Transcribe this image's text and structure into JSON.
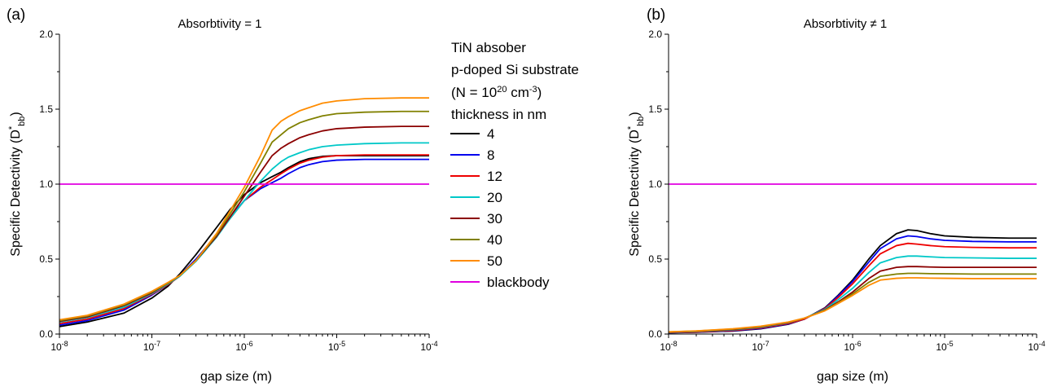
{
  "legend": {
    "header": [
      {
        "text": "TiN absober"
      },
      {
        "text": "p-doped Si substrate"
      },
      {
        "pre": "(N = 10",
        "sup": "20",
        "mid": " cm",
        "sup2": "-3",
        "post": ")"
      },
      {
        "text": "thickness in nm"
      }
    ]
  },
  "chart_data": [
    {
      "type": "line",
      "panel_label": "(a)",
      "title": "Absorbtivity = 1",
      "xlabel": "gap size (m)",
      "ylabel": {
        "main": "Specific Detectivity (D",
        "sup": "*",
        "sub": "bb",
        "end": ")"
      },
      "x_scale": "log",
      "xlim": [
        1e-08,
        0.0001
      ],
      "ylim": [
        0.0,
        2.0
      ],
      "x_ticks": [
        {
          "base": "10",
          "exp": "-8"
        },
        {
          "base": "10",
          "exp": "-7"
        },
        {
          "base": "10",
          "exp": "-6"
        },
        {
          "base": "10",
          "exp": "-5"
        },
        {
          "base": "10",
          "exp": "-4"
        }
      ],
      "y_ticks": [
        "0.0",
        "0.5",
        "1.0",
        "1.5",
        "2.0"
      ],
      "x": [
        1e-08,
        2e-08,
        5e-08,
        1e-07,
        1.5e-07,
        2e-07,
        3e-07,
        5e-07,
        7e-07,
        1e-06,
        1.5e-06,
        2e-06,
        2.5e-06,
        3e-06,
        4e-06,
        5e-06,
        7e-06,
        1e-05,
        2e-05,
        5e-05,
        0.0001
      ],
      "series": [
        {
          "name": "4",
          "color": "#000000",
          "values": [
            0.05,
            0.08,
            0.14,
            0.24,
            0.32,
            0.4,
            0.53,
            0.71,
            0.83,
            0.93,
            1.01,
            1.05,
            1.08,
            1.11,
            1.15,
            1.17,
            1.185,
            1.19,
            1.19,
            1.19,
            1.19
          ]
        },
        {
          "name": "8",
          "color": "#0000ee",
          "values": [
            0.06,
            0.09,
            0.16,
            0.26,
            0.33,
            0.39,
            0.5,
            0.66,
            0.78,
            0.89,
            0.97,
            1.01,
            1.04,
            1.07,
            1.11,
            1.13,
            1.15,
            1.16,
            1.165,
            1.165,
            1.165
          ]
        },
        {
          "name": "12",
          "color": "#ee0000",
          "values": [
            0.07,
            0.1,
            0.17,
            0.265,
            0.33,
            0.385,
            0.49,
            0.65,
            0.77,
            0.89,
            0.98,
            1.03,
            1.07,
            1.1,
            1.14,
            1.16,
            1.18,
            1.19,
            1.195,
            1.195,
            1.195
          ]
        },
        {
          "name": "20",
          "color": "#00c8c8",
          "values": [
            0.08,
            0.11,
            0.18,
            0.27,
            0.335,
            0.385,
            0.485,
            0.645,
            0.77,
            0.89,
            1.02,
            1.1,
            1.15,
            1.18,
            1.21,
            1.23,
            1.25,
            1.26,
            1.27,
            1.275,
            1.275
          ]
        },
        {
          "name": "30",
          "color": "#8b0000",
          "values": [
            0.085,
            0.115,
            0.19,
            0.275,
            0.34,
            0.39,
            0.49,
            0.65,
            0.78,
            0.92,
            1.08,
            1.19,
            1.24,
            1.27,
            1.31,
            1.33,
            1.355,
            1.37,
            1.38,
            1.385,
            1.385
          ]
        },
        {
          "name": "40",
          "color": "#808000",
          "values": [
            0.09,
            0.12,
            0.195,
            0.28,
            0.34,
            0.39,
            0.49,
            0.66,
            0.8,
            0.95,
            1.14,
            1.28,
            1.33,
            1.37,
            1.41,
            1.43,
            1.455,
            1.47,
            1.48,
            1.485,
            1.485
          ]
        },
        {
          "name": "50",
          "color": "#ff8c00",
          "values": [
            0.095,
            0.125,
            0.2,
            0.285,
            0.345,
            0.39,
            0.49,
            0.67,
            0.82,
            0.98,
            1.19,
            1.36,
            1.42,
            1.45,
            1.49,
            1.51,
            1.54,
            1.555,
            1.57,
            1.575,
            1.575
          ]
        },
        {
          "name": "blackbody",
          "color": "#e000e0",
          "values": [
            1.0,
            1.0,
            1.0,
            1.0,
            1.0,
            1.0,
            1.0,
            1.0,
            1.0,
            1.0,
            1.0,
            1.0,
            1.0,
            1.0,
            1.0,
            1.0,
            1.0,
            1.0,
            1.0,
            1.0,
            1.0
          ]
        }
      ]
    },
    {
      "type": "line",
      "panel_label": "(b)",
      "title": "Absorbtivity ≠ 1",
      "xlabel": "gap size (m)",
      "ylabel": {
        "main": "Specific Detectivity (D",
        "sup": "*",
        "sub": "bb",
        "end": ")"
      },
      "x_scale": "log",
      "xlim": [
        1e-08,
        0.0001
      ],
      "ylim": [
        0.0,
        2.0
      ],
      "x_ticks": [
        {
          "base": "10",
          "exp": "-8"
        },
        {
          "base": "10",
          "exp": "-7"
        },
        {
          "base": "10",
          "exp": "-6"
        },
        {
          "base": "10",
          "exp": "-5"
        },
        {
          "base": "10",
          "exp": "-4"
        }
      ],
      "y_ticks": [
        "0.0",
        "0.5",
        "1.0",
        "1.5",
        "2.0"
      ],
      "x": [
        1e-08,
        2e-08,
        5e-08,
        1e-07,
        2e-07,
        3e-07,
        5e-07,
        7e-07,
        1e-06,
        1.5e-06,
        2e-06,
        3e-06,
        4e-06,
        5e-06,
        7e-06,
        1e-05,
        2e-05,
        5e-05,
        0.0001
      ],
      "series": [
        {
          "name": "4",
          "color": "#000000",
          "values": [
            0.008,
            0.012,
            0.02,
            0.035,
            0.065,
            0.1,
            0.175,
            0.26,
            0.36,
            0.5,
            0.59,
            0.67,
            0.695,
            0.69,
            0.67,
            0.655,
            0.645,
            0.64,
            0.64
          ]
        },
        {
          "name": "8",
          "color": "#0000ee",
          "values": [
            0.009,
            0.013,
            0.022,
            0.037,
            0.067,
            0.1,
            0.172,
            0.255,
            0.35,
            0.48,
            0.57,
            0.635,
            0.655,
            0.65,
            0.635,
            0.625,
            0.618,
            0.615,
            0.615
          ]
        },
        {
          "name": "12",
          "color": "#ee0000",
          "values": [
            0.01,
            0.014,
            0.024,
            0.04,
            0.07,
            0.1,
            0.17,
            0.245,
            0.335,
            0.455,
            0.535,
            0.59,
            0.605,
            0.6,
            0.59,
            0.583,
            0.578,
            0.575,
            0.575
          ]
        },
        {
          "name": "20",
          "color": "#00c8c8",
          "values": [
            0.012,
            0.017,
            0.028,
            0.045,
            0.075,
            0.105,
            0.165,
            0.23,
            0.305,
            0.41,
            0.475,
            0.51,
            0.52,
            0.52,
            0.515,
            0.51,
            0.508,
            0.505,
            0.505
          ]
        },
        {
          "name": "30",
          "color": "#8b0000",
          "values": [
            0.013,
            0.019,
            0.031,
            0.048,
            0.077,
            0.105,
            0.16,
            0.215,
            0.28,
            0.37,
            0.42,
            0.445,
            0.45,
            0.45,
            0.447,
            0.445,
            0.445,
            0.445,
            0.445
          ]
        },
        {
          "name": "40",
          "color": "#808000",
          "values": [
            0.014,
            0.02,
            0.033,
            0.05,
            0.079,
            0.106,
            0.158,
            0.21,
            0.268,
            0.345,
            0.385,
            0.4,
            0.405,
            0.405,
            0.403,
            0.402,
            0.4,
            0.4,
            0.4
          ]
        },
        {
          "name": "50",
          "color": "#ff8c00",
          "values": [
            0.015,
            0.021,
            0.035,
            0.052,
            0.08,
            0.106,
            0.155,
            0.205,
            0.258,
            0.325,
            0.36,
            0.372,
            0.375,
            0.375,
            0.373,
            0.372,
            0.37,
            0.37,
            0.37
          ]
        },
        {
          "name": "blackbody",
          "color": "#e000e0",
          "values": [
            1.0,
            1.0,
            1.0,
            1.0,
            1.0,
            1.0,
            1.0,
            1.0,
            1.0,
            1.0,
            1.0,
            1.0,
            1.0,
            1.0,
            1.0,
            1.0,
            1.0,
            1.0,
            1.0
          ]
        }
      ]
    }
  ]
}
